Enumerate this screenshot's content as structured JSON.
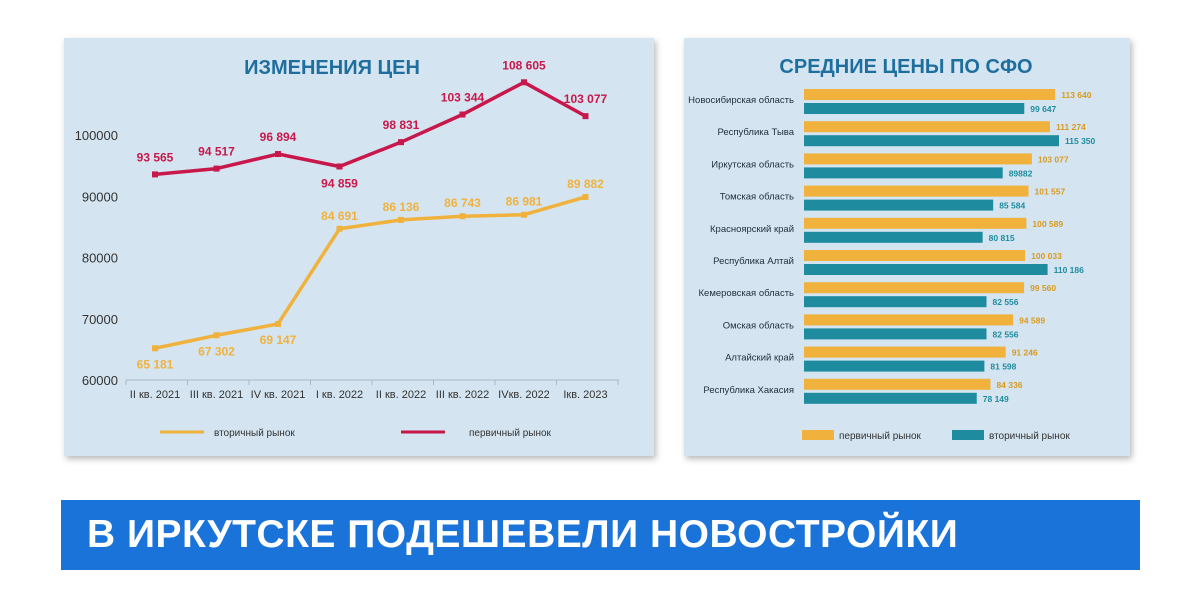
{
  "colors": {
    "panel_bg": "#d4e5f1",
    "primary": "#c8174a",
    "secondary": "#f0b23c",
    "bar_primary": "#f0b23c",
    "bar_secondary": "#1e8c9e",
    "title": "#1f6f9e",
    "banner": "#1a73d9"
  },
  "banner": {
    "text": "В ИРКУТСКЕ ПОДЕШЕВЕЛИ НОВОСТРОЙКИ"
  },
  "chart_data": [
    {
      "type": "line",
      "title": "ИЗМЕНЕНИЯ ЦЕН",
      "categories": [
        "II кв. 2021",
        "III кв. 2021",
        "IV кв. 2021",
        "I кв. 2022",
        "II кв. 2022",
        "III кв. 2022",
        "IVкв. 2022",
        "Iкв. 2023"
      ],
      "y_ticks": [
        "100000",
        "90000",
        "80000",
        "70000",
        "60000"
      ],
      "ylim": [
        60000,
        100000
      ],
      "grid": false,
      "legend_position": "bottom",
      "series": [
        {
          "name": "первичный рынок",
          "values": [
            93565,
            94517,
            96894,
            94859,
            98831,
            103344,
            108605,
            103077
          ],
          "labels": [
            "93 565",
            "94 517",
            "96 894",
            "94 859",
            "98 831",
            "103 344",
            "108 605",
            "103 077"
          ]
        },
        {
          "name": "вторичный рынок",
          "values": [
            65181,
            67302,
            69147,
            84691,
            86136,
            86743,
            86981,
            89882
          ],
          "labels": [
            "65 181",
            "67 302",
            "69 147",
            "84 691",
            "86 136",
            "86 743",
            "86 981",
            "89 882"
          ]
        }
      ]
    },
    {
      "type": "bar",
      "orientation": "horizontal",
      "title": "СРЕДНИЕ ЦЕНЫ ПО СФО",
      "categories": [
        "Новосибирская область",
        "Республика Тыва",
        "Иркутская область",
        "Томская область",
        "Красноярский край",
        "Республика Алтай",
        "Кемеровская область",
        "Омская область",
        "Алтайский край",
        "Республика Хакасия"
      ],
      "grid": false,
      "legend_position": "bottom",
      "series": [
        {
          "name": "первичный рынок",
          "values": [
            113640,
            111274,
            103077,
            101557,
            100589,
            100033,
            99560,
            94589,
            91246,
            84336
          ],
          "labels": [
            "113 640",
            "111 274",
            "103 077",
            "101 557",
            "100 589",
            "100 033",
            "99 560",
            "94 589",
            "91 246",
            "84 336"
          ]
        },
        {
          "name": "вторичный рынок",
          "values": [
            99647,
            115350,
            89882,
            85584,
            80815,
            110186,
            82556,
            82556,
            81598,
            78149
          ],
          "labels": [
            "99 647",
            "115 350",
            "89882",
            "85 584",
            "80 815",
            "110 186",
            "82 556",
            "82 556",
            "81 598",
            "78 149"
          ]
        }
      ]
    }
  ]
}
